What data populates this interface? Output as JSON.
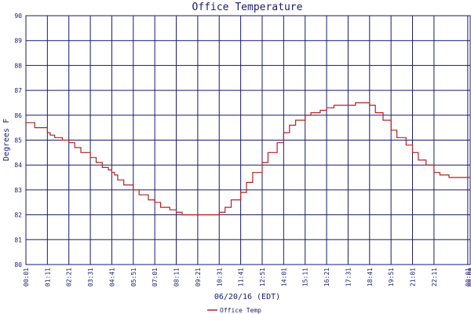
{
  "chart_data": {
    "type": "line",
    "title": "Office Temperature",
    "xlabel": "06/20/16 (EDT)",
    "ylabel": "Degrees F",
    "ylim": [
      80,
      90
    ],
    "yticks": [
      "80",
      "81",
      "82",
      "83",
      "84",
      "85",
      "86",
      "87",
      "88",
      "89",
      "90"
    ],
    "xticks": [
      "00:01",
      "01:11",
      "02:21",
      "03:31",
      "04:41",
      "05:51",
      "07:01",
      "08:11",
      "09:21",
      "10:31",
      "11:41",
      "12:51",
      "14:01",
      "15:11",
      "16:21",
      "17:31",
      "18:41",
      "19:51",
      "21:01",
      "22:11",
      "00:01",
      "00:09"
    ],
    "grid": true,
    "legend": "bottom-left",
    "colors": {
      "line": "#b22222",
      "grid": "#1a1a6e",
      "text": "#1a1a6e"
    },
    "series": [
      {
        "name": "Office Temp",
        "x": [
          "00:01",
          "00:30",
          "01:11",
          "01:20",
          "01:35",
          "02:00",
          "02:21",
          "02:40",
          "03:00",
          "03:31",
          "03:50",
          "04:10",
          "04:30",
          "04:41",
          "04:50",
          "05:00",
          "05:20",
          "05:51",
          "06:10",
          "06:40",
          "07:01",
          "07:20",
          "07:50",
          "08:11",
          "08:30",
          "09:00",
          "09:21",
          "09:50",
          "10:15",
          "10:31",
          "10:50",
          "11:10",
          "11:41",
          "12:00",
          "12:20",
          "12:51",
          "13:10",
          "13:40",
          "14:01",
          "14:20",
          "14:40",
          "15:11",
          "15:30",
          "16:00",
          "16:21",
          "16:45",
          "17:10",
          "17:31",
          "17:55",
          "18:20",
          "18:41",
          "19:00",
          "19:25",
          "19:51",
          "20:10",
          "20:40",
          "21:01",
          "21:20",
          "21:45",
          "22:11",
          "22:30",
          "23:00",
          "23:30",
          "00:01",
          "00:09"
        ],
        "values": [
          85.7,
          85.5,
          85.3,
          85.2,
          85.1,
          85.0,
          84.9,
          84.7,
          84.5,
          84.3,
          84.1,
          83.9,
          83.8,
          83.7,
          83.6,
          83.4,
          83.2,
          83.0,
          82.8,
          82.6,
          82.5,
          82.3,
          82.2,
          82.1,
          82.0,
          82.0,
          82.0,
          82.0,
          82.0,
          82.1,
          82.3,
          82.6,
          82.9,
          83.3,
          83.7,
          84.1,
          84.5,
          84.9,
          85.3,
          85.6,
          85.8,
          86.0,
          86.1,
          86.2,
          86.3,
          86.4,
          86.4,
          86.4,
          86.5,
          86.5,
          86.4,
          86.1,
          85.8,
          85.4,
          85.1,
          84.8,
          84.5,
          84.2,
          84.0,
          83.7,
          83.6,
          83.5,
          83.5,
          83.5,
          83.5
        ]
      }
    ]
  }
}
